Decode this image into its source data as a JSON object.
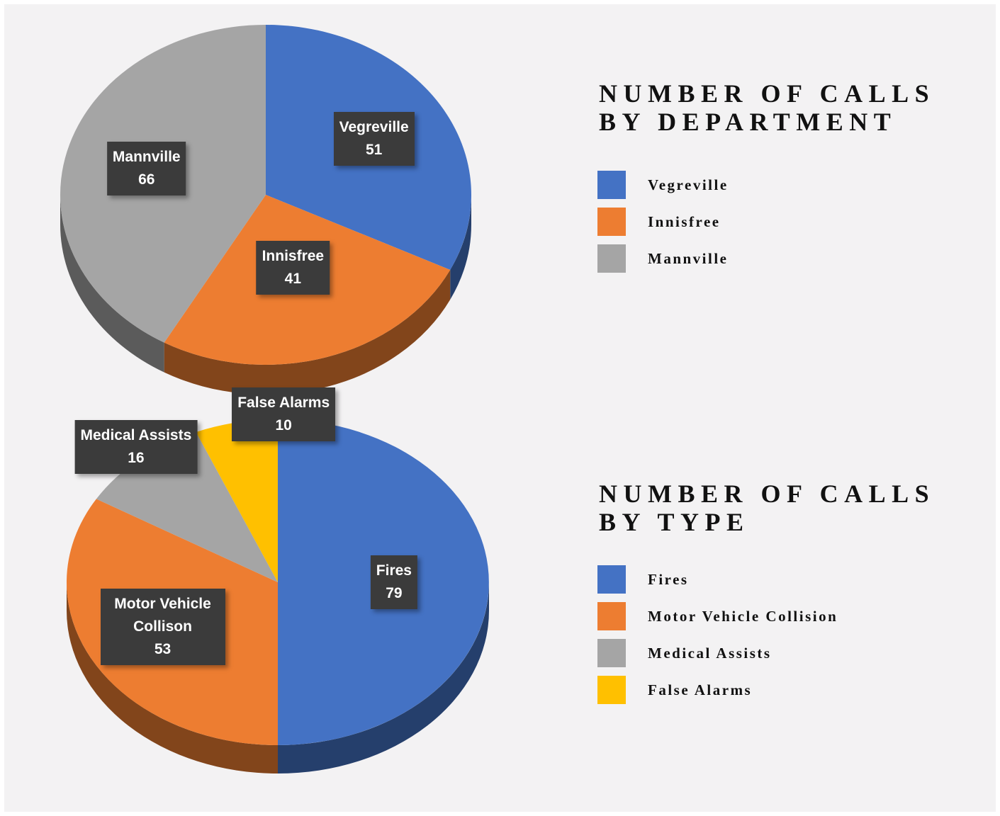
{
  "chart_data": [
    {
      "type": "pie",
      "title": "NUMBER OF CALLS BY DEPARTMENT",
      "categories": [
        "Vegreville",
        "Innisfree",
        "Mannville"
      ],
      "values": [
        51,
        41,
        66
      ],
      "colors": [
        "#4472c4",
        "#ed7d31",
        "#a5a5a5"
      ]
    },
    {
      "type": "pie",
      "title": "NUMBER OF CALLS BY TYPE",
      "categories": [
        "Fires",
        "Motor Vehicle Collision",
        "Medical Assists",
        "False Alarms"
      ],
      "slice_labels": [
        "Fires",
        "Motor Vehicle Collison",
        "Medical Assists",
        "False Alarms"
      ],
      "values": [
        79,
        53,
        16,
        10
      ],
      "colors": [
        "#4472c4",
        "#ed7d31",
        "#a5a5a5",
        "#ffc000"
      ]
    }
  ]
}
